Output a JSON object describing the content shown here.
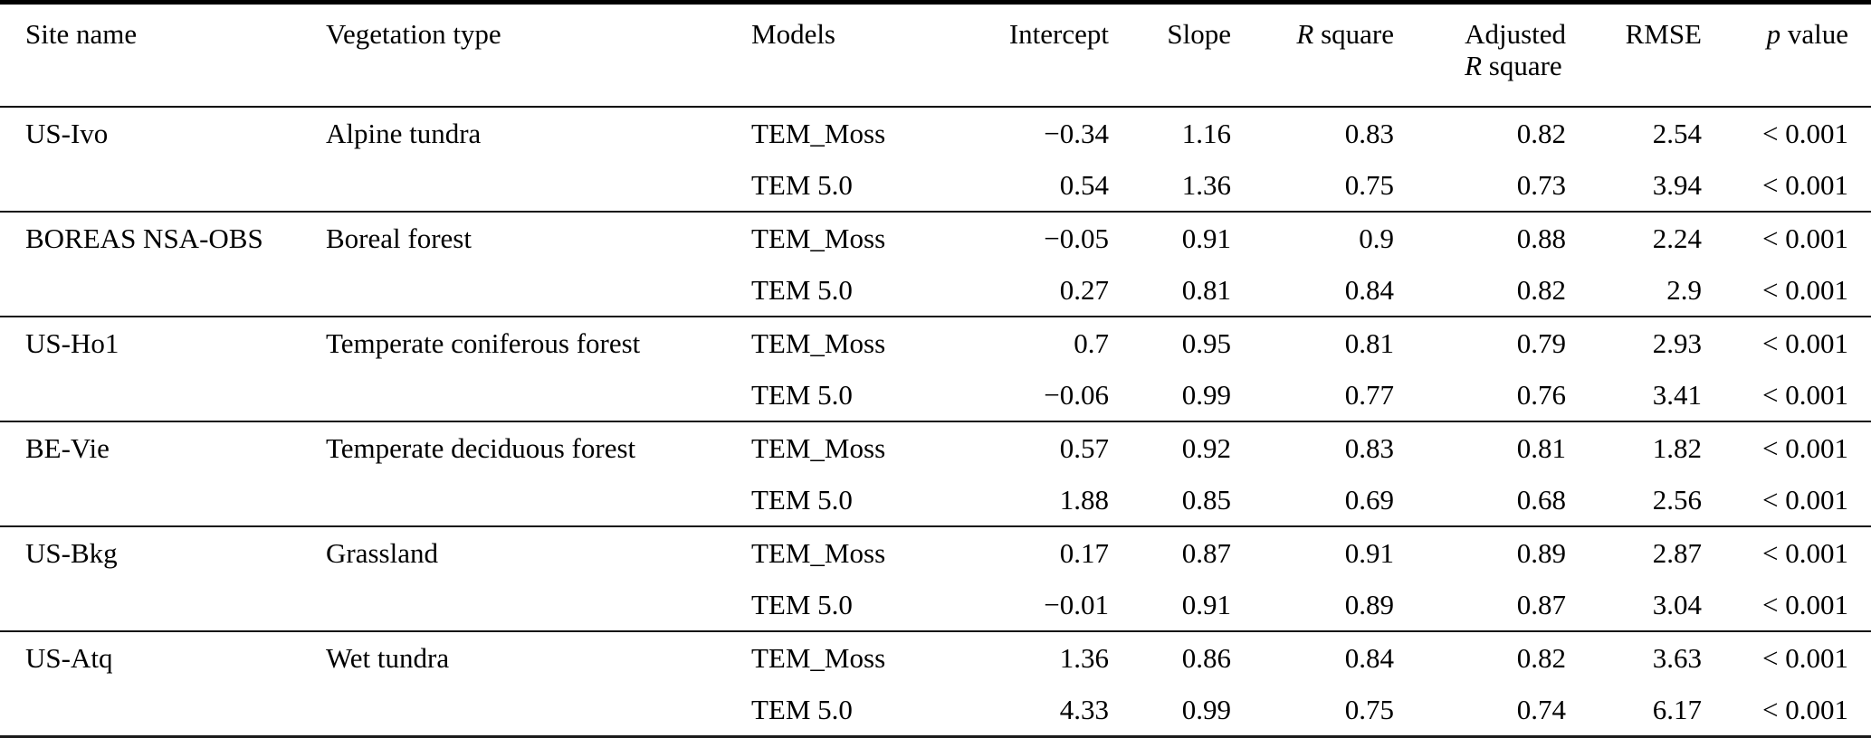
{
  "table": {
    "text_color": "#000000",
    "background_color": "#ffffff",
    "rule_color": "#000000",
    "columns": {
      "site": "Site name",
      "vegetation": "Vegetation type",
      "models": "Models",
      "intercept": "Intercept",
      "slope": "Slope",
      "r_square_italic": "R",
      "r_square_rest": "square",
      "adjusted_line1": "Adjusted",
      "adjusted_italic": "R",
      "adjusted_rest": "square",
      "rmse": "RMSE",
      "p_italic": "p",
      "p_rest": "value"
    },
    "rows": [
      {
        "site": "US-Ivo",
        "vegetation": "Alpine tundra",
        "models": [
          {
            "name": "TEM_Moss",
            "intercept": "−0.34",
            "slope": "1.16",
            "r_square": "0.83",
            "adj_r_square": "0.82",
            "rmse": "2.54",
            "p_value": "< 0.001"
          },
          {
            "name": "TEM 5.0",
            "intercept": "0.54",
            "slope": "1.36",
            "r_square": "0.75",
            "adj_r_square": "0.73",
            "rmse": "3.94",
            "p_value": "< 0.001"
          }
        ]
      },
      {
        "site": "BOREAS NSA-OBS",
        "vegetation": "Boreal forest",
        "models": [
          {
            "name": "TEM_Moss",
            "intercept": "−0.05",
            "slope": "0.91",
            "r_square": "0.9",
            "adj_r_square": "0.88",
            "rmse": "2.24",
            "p_value": "< 0.001"
          },
          {
            "name": "TEM 5.0",
            "intercept": "0.27",
            "slope": "0.81",
            "r_square": "0.84",
            "adj_r_square": "0.82",
            "rmse": "2.9",
            "p_value": "< 0.001"
          }
        ]
      },
      {
        "site": "US-Ho1",
        "vegetation": "Temperate coniferous forest",
        "models": [
          {
            "name": "TEM_Moss",
            "intercept": "0.7",
            "slope": "0.95",
            "r_square": "0.81",
            "adj_r_square": "0.79",
            "rmse": "2.93",
            "p_value": "< 0.001"
          },
          {
            "name": "TEM 5.0",
            "intercept": "−0.06",
            "slope": "0.99",
            "r_square": "0.77",
            "adj_r_square": "0.76",
            "rmse": "3.41",
            "p_value": "< 0.001"
          }
        ]
      },
      {
        "site": "BE-Vie",
        "vegetation": "Temperate deciduous forest",
        "models": [
          {
            "name": "TEM_Moss",
            "intercept": "0.57",
            "slope": "0.92",
            "r_square": "0.83",
            "adj_r_square": "0.81",
            "rmse": "1.82",
            "p_value": "< 0.001"
          },
          {
            "name": "TEM 5.0",
            "intercept": "1.88",
            "slope": "0.85",
            "r_square": "0.69",
            "adj_r_square": "0.68",
            "rmse": "2.56",
            "p_value": "< 0.001"
          }
        ]
      },
      {
        "site": "US-Bkg",
        "vegetation": "Grassland",
        "models": [
          {
            "name": "TEM_Moss",
            "intercept": "0.17",
            "slope": "0.87",
            "r_square": "0.91",
            "adj_r_square": "0.89",
            "rmse": "2.87",
            "p_value": "< 0.001"
          },
          {
            "name": "TEM 5.0",
            "intercept": "−0.01",
            "slope": "0.91",
            "r_square": "0.89",
            "adj_r_square": "0.87",
            "rmse": "3.04",
            "p_value": "< 0.001"
          }
        ]
      },
      {
        "site": "US-Atq",
        "vegetation": "Wet tundra",
        "models": [
          {
            "name": "TEM_Moss",
            "intercept": "1.36",
            "slope": "0.86",
            "r_square": "0.84",
            "adj_r_square": "0.82",
            "rmse": "3.63",
            "p_value": "< 0.001"
          },
          {
            "name": "TEM 5.0",
            "intercept": "4.33",
            "slope": "0.99",
            "r_square": "0.75",
            "adj_r_square": "0.74",
            "rmse": "6.17",
            "p_value": "< 0.001"
          }
        ]
      }
    ]
  }
}
